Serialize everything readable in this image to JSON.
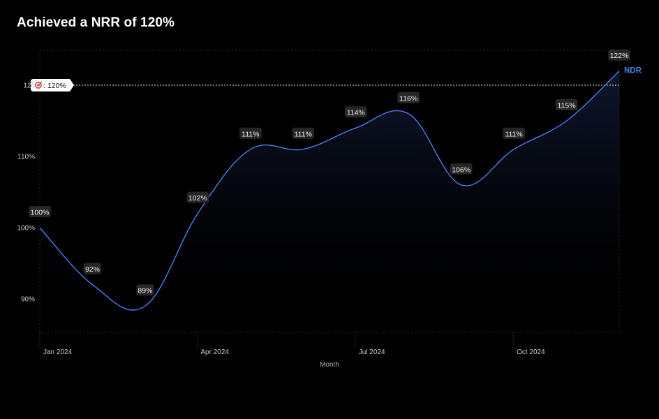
{
  "header": {
    "title": "Achieved a NRR of 120%"
  },
  "colors": {
    "line": "#4a7df0",
    "background": "#000000",
    "grid": "#333333",
    "label_bg": "#262626",
    "reference": "#e6e6e6"
  },
  "chart_data": {
    "type": "area",
    "title": "Achieved a NRR of 120%",
    "xlabel": "Month",
    "ylabel": "",
    "x_ticks": [
      "Jan 2024",
      "Apr 2024",
      "Jul 2024",
      "Oct 2024"
    ],
    "y_ticks": [
      90,
      100,
      110,
      120
    ],
    "y_tick_labels": [
      "90%",
      "100%",
      "110%",
      "120"
    ],
    "ylim": [
      85,
      125
    ],
    "grid": false,
    "series": [
      {
        "name": "NDR",
        "x": [
          "Jan 2024",
          "Feb 2024",
          "Mar 2024",
          "Apr 2024",
          "May 2024",
          "Jun 2024",
          "Jul 2024",
          "Aug 2024",
          "Sep 2024",
          "Oct 2024",
          "Nov 2024",
          "Dec 2024"
        ],
        "values": [
          100,
          92,
          89,
          102,
          111,
          111,
          114,
          116,
          106,
          111,
          115,
          122
        ],
        "labels": [
          "100%",
          "92%",
          "89%",
          "102%",
          "111%",
          "111%",
          "114%",
          "116%",
          "106%",
          "111%",
          "115%",
          "122%"
        ]
      }
    ],
    "reference_line": {
      "value": 120,
      "icon": "target-icon",
      "label": ": 120%"
    }
  }
}
